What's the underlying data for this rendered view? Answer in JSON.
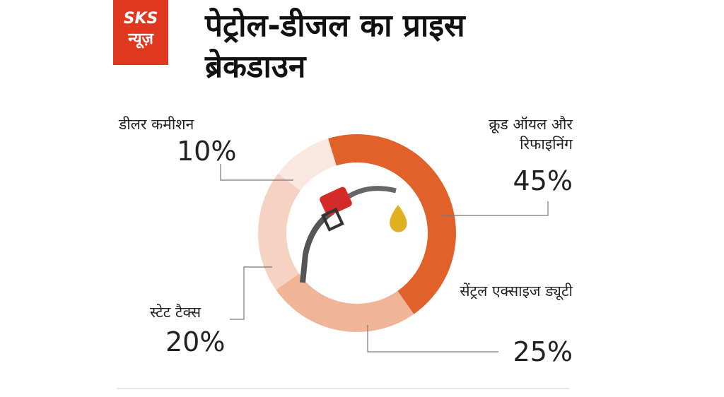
{
  "logo": {
    "line1": "SKS",
    "line2": "न्यूज़"
  },
  "chart_data": {
    "type": "pie",
    "title": "पेट्रोल-डीजल का प्राइस ब्रेकडाउन",
    "categories": [
      "क्रूड ऑयल और रिफाइनिंग",
      "सेंट्रल एक्साइज ड्यूटी",
      "स्टेट टैक्स",
      "डीलर कमीशन"
    ],
    "values": [
      45,
      25,
      20,
      10
    ],
    "value_labels": [
      "45%",
      "25%",
      "20%",
      "10%"
    ],
    "colors": [
      "#e0622a",
      "#f0b497",
      "#f6d2c2",
      "#fae7df"
    ]
  }
}
